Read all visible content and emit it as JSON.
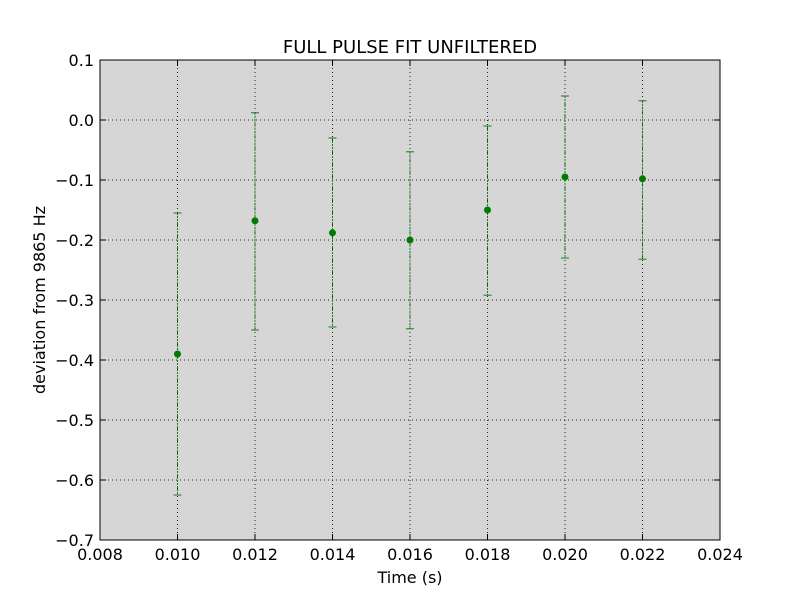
{
  "chart_data": {
    "type": "scatter",
    "title": "FULL PULSE FIT UNFILTERED",
    "xlabel": "Time (s)",
    "ylabel": "deviation from 9865 Hz",
    "xlim": [
      0.008,
      0.024
    ],
    "ylim": [
      -0.7,
      0.1
    ],
    "grid": true,
    "x_ticks": [
      "0.008",
      "0.010",
      "0.012",
      "0.014",
      "0.016",
      "0.018",
      "0.020",
      "0.022",
      "0.024"
    ],
    "y_ticks": [
      "0.1",
      "0.0",
      "−0.1",
      "−0.2",
      "−0.3",
      "−0.4",
      "−0.5",
      "−0.6",
      "−0.7"
    ],
    "x": [
      0.01,
      0.012,
      0.014,
      0.016,
      0.018,
      0.02,
      0.022
    ],
    "y": [
      -0.39,
      -0.168,
      -0.188,
      -0.2,
      -0.15,
      -0.095,
      -0.098
    ],
    "y_err_lower": [
      -0.625,
      -0.35,
      -0.345,
      -0.348,
      -0.292,
      -0.23,
      -0.232
    ],
    "y_err_upper": [
      -0.155,
      0.012,
      -0.03,
      -0.053,
      -0.01,
      0.04,
      0.032
    ],
    "colors": {
      "points": "#007a00",
      "errorbars": "#1a7a1a",
      "plot_background": "#d6d6d6"
    }
  }
}
